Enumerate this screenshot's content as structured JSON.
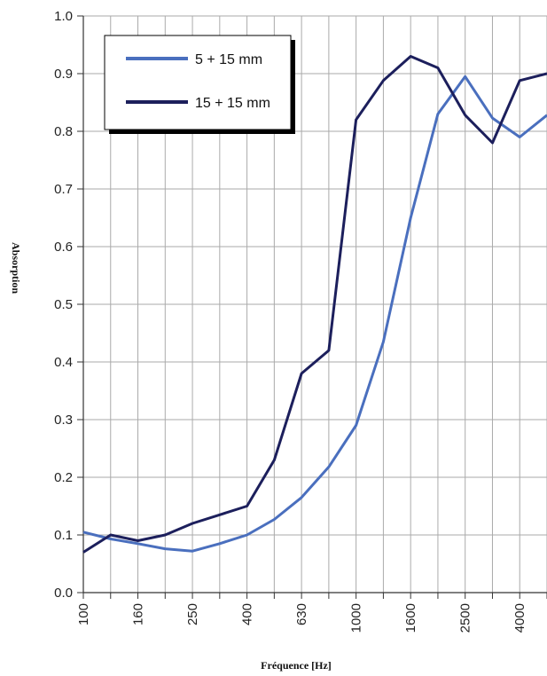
{
  "chart_data": {
    "type": "line",
    "title": "",
    "xlabel": "Fréquence [Hz]",
    "ylabel": "Absorption",
    "x": [
      "100",
      "125",
      "160",
      "200",
      "250",
      "315",
      "400",
      "500",
      "630",
      "800",
      "1000",
      "1250",
      "1600",
      "2000",
      "2500",
      "3150",
      "4000",
      "5000"
    ],
    "x_tick_labels": [
      "100",
      "160",
      "250",
      "400",
      "630",
      "1000",
      "1600",
      "2500",
      "4000"
    ],
    "y_tick_labels": [
      "0.0",
      "0.1",
      "0.2",
      "0.3",
      "0.4",
      "0.5",
      "0.6",
      "0.7",
      "0.8",
      "0.9",
      "1.0"
    ],
    "ylim": [
      0,
      1
    ],
    "grid": true,
    "legend_position": "top-left",
    "series": [
      {
        "name": "5 + 15 mm",
        "color": "#4a6fbe",
        "values": [
          0.105,
          0.093,
          0.085,
          0.076,
          0.072,
          0.085,
          0.1,
          0.127,
          0.165,
          0.218,
          0.29,
          0.435,
          0.65,
          0.83,
          0.895,
          0.823,
          0.79,
          0.828
        ]
      },
      {
        "name": "15 + 15 mm",
        "color": "#1c1f5c",
        "values": [
          0.07,
          0.1,
          0.09,
          0.1,
          0.12,
          0.135,
          0.15,
          0.23,
          0.38,
          0.42,
          0.82,
          0.888,
          0.93,
          0.91,
          0.828,
          0.78,
          0.888,
          0.9
        ]
      }
    ]
  }
}
